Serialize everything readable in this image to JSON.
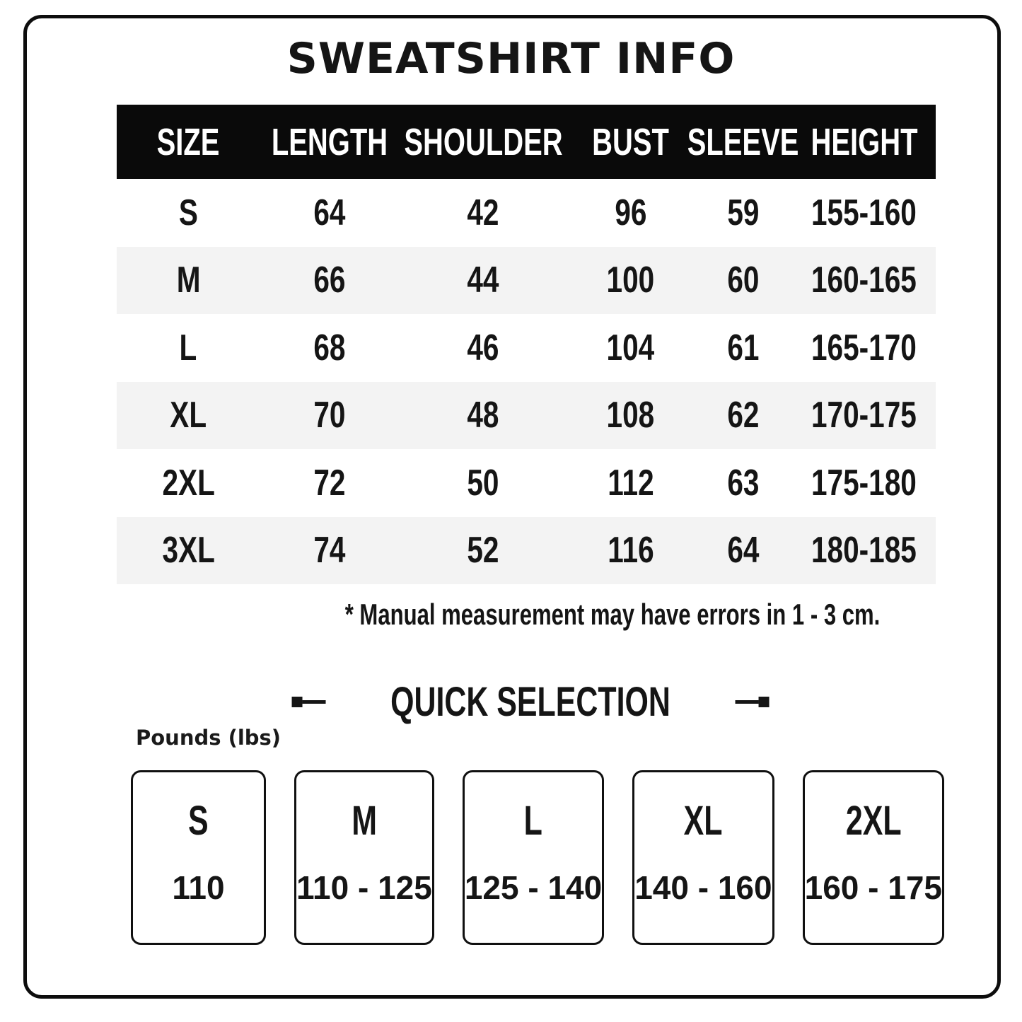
{
  "title": "SWEATSHIRT INFO",
  "table": {
    "headers": [
      "SIZE",
      "LENGTH",
      "SHOULDER",
      "BUST",
      "SLEEVE",
      "HEIGHT"
    ],
    "rows": [
      {
        "size": "S",
        "length": "64",
        "shoulder": "42",
        "bust": "96",
        "sleeve": "59",
        "height": "155-160"
      },
      {
        "size": "M",
        "length": "66",
        "shoulder": "44",
        "bust": "100",
        "sleeve": "60",
        "height": "160-165"
      },
      {
        "size": "L",
        "length": "68",
        "shoulder": "46",
        "bust": "104",
        "sleeve": "61",
        "height": "165-170"
      },
      {
        "size": "XL",
        "length": "70",
        "shoulder": "48",
        "bust": "108",
        "sleeve": "62",
        "height": "170-175"
      },
      {
        "size": "2XL",
        "length": "72",
        "shoulder": "50",
        "bust": "112",
        "sleeve": "63",
        "height": "175-180"
      },
      {
        "size": "3XL",
        "length": "74",
        "shoulder": "52",
        "bust": "116",
        "sleeve": "64",
        "height": "180-185"
      }
    ],
    "note": "* Manual measurement may have errors in 1 - 3 cm."
  },
  "quick_selection": {
    "heading": "QUICK SELECTION",
    "unit_label": "Pounds (lbs)",
    "options": [
      {
        "size": "S",
        "range": "110"
      },
      {
        "size": "M",
        "range": "110 - 125"
      },
      {
        "size": "L",
        "range": "125 - 140"
      },
      {
        "size": "XL",
        "range": "140 - 160"
      },
      {
        "size": "2XL",
        "range": "160 - 175"
      }
    ]
  },
  "colors": {
    "header_bg": "#0a0a0a",
    "header_text": "#ffffff",
    "row_alt": "#f3f3f3",
    "ink": "#151515",
    "frame": "#0d0d0d",
    "background": "#ffffff"
  }
}
